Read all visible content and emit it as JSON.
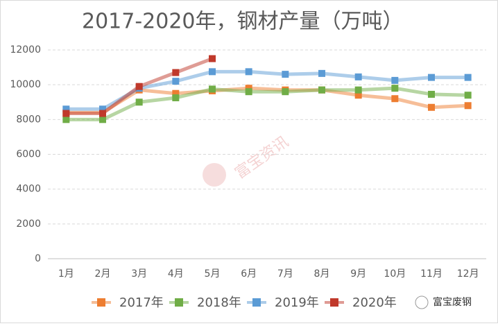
{
  "chart_data": {
    "type": "line",
    "title": "2017-2020年，钢材产量（万吨）",
    "categories": [
      "1月",
      "2月",
      "3月",
      "4月",
      "5月",
      "6月",
      "7月",
      "8月",
      "9月",
      "10月",
      "11月",
      "12月"
    ],
    "series": [
      {
        "name": "2017年",
        "color": "#ed7d31",
        "values": [
          8400,
          8400,
          9700,
          9500,
          9650,
          9800,
          9700,
          9700,
          9400,
          9200,
          8700,
          8800
        ]
      },
      {
        "name": "2018年",
        "color": "#70ad47",
        "values": [
          8000,
          8000,
          9000,
          9250,
          9750,
          9600,
          9600,
          9700,
          9700,
          9800,
          9450,
          9400
        ]
      },
      {
        "name": "2019年",
        "color": "#5b9bd5",
        "values": [
          8600,
          8600,
          9800,
          10200,
          10750,
          10750,
          10600,
          10650,
          10450,
          10250,
          10420,
          10420
        ]
      },
      {
        "name": "2020年",
        "color": "#c0392b",
        "values": [
          8350,
          8350,
          9900,
          10700,
          11500,
          null,
          null,
          null,
          null,
          null,
          null,
          null
        ]
      }
    ],
    "ylim": [
      0,
      12000
    ],
    "yticks": [
      0,
      2000,
      4000,
      6000,
      8000,
      10000,
      12000
    ],
    "grid": true,
    "legend": "bottom",
    "watermark": "富宝资讯",
    "brand": "富宝废钢"
  }
}
